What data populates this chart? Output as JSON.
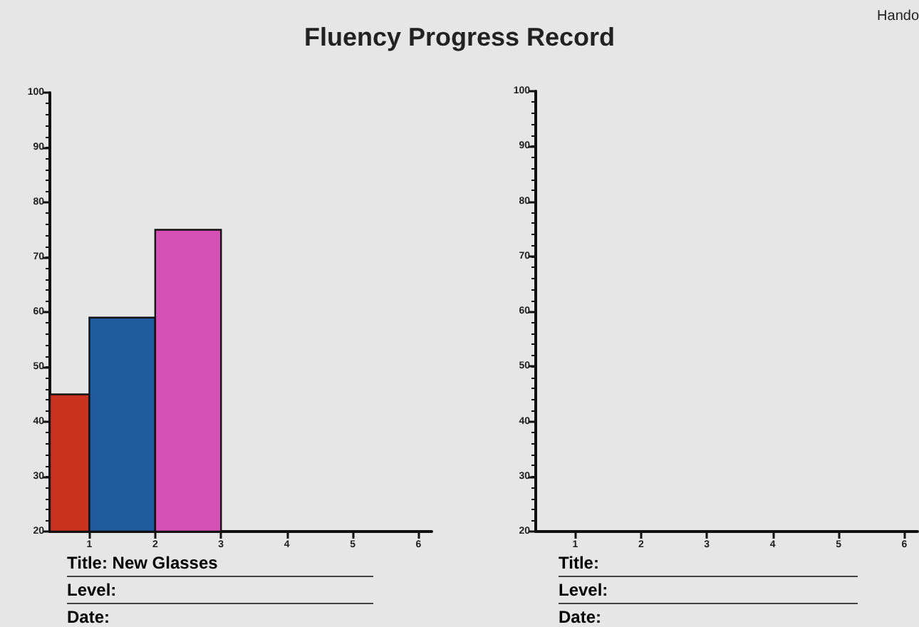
{
  "chart_data": [
    {
      "type": "histogram",
      "title": "Fluency Progress Record",
      "bins": [
        0.4,
        1,
        2,
        3
      ],
      "values": [
        45,
        59,
        75
      ],
      "colors": [
        "#c8321e",
        "#1f5a9e",
        "#d54fb4"
      ],
      "xlim": [
        0.4,
        6.2
      ],
      "xticks": [
        1,
        2,
        3,
        4,
        5,
        6
      ],
      "ylim": [
        20,
        100
      ],
      "yticks": [
        20,
        30,
        40,
        50,
        60,
        70,
        80,
        90,
        100
      ],
      "annotations": [
        "Title: New Glasses",
        "Level:",
        "Date:"
      ]
    },
    {
      "type": "histogram",
      "title": "Hando",
      "xlim": [
        0.4,
        6.2
      ],
      "xticks": [
        1,
        2,
        3,
        4,
        5,
        6
      ],
      "ylim": [
        20,
        100
      ],
      "yticks": [
        20,
        30,
        40,
        50,
        60,
        70,
        80,
        90,
        100
      ],
      "annotations": [
        "Title:",
        "Level:",
        "Date:"
      ]
    }
  ]
}
